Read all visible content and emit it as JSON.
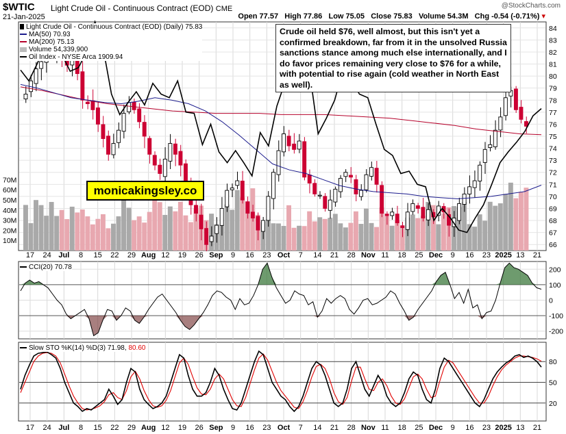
{
  "header": {
    "ticker": "$WTIC",
    "name": "Light Crude Oil - Continuous Contract (EOD)",
    "exchange": "CME",
    "date": "21-Jan-2025",
    "open": "Open 77.57",
    "high": "High 77.86",
    "low": "Low 75.05",
    "close": "Close 75.83",
    "volume": "Volume 54.3M",
    "chg": "Chg -0.54 (-0.71%)",
    "watermark": "@StockCharts.com"
  },
  "legend": {
    "main": "Light Crude Oil - Continuous Contract (EOD) (Daily) 75.83",
    "ma50": "MA(50) 70.93",
    "ma200": "MA(200) 75.13",
    "volume": "Volume 54,339,900",
    "oil_index": "Oil Index - NYSE Arca 1909.94",
    "cci": "CCI(20) 70.78",
    "sto_label": "Slow STO %K(14) %D(3) 71.98,",
    "sto_d": "80.60"
  },
  "annotation": "Crude oil held $76, well almost, but this isn't yet a confirmed breakdown, far from it in the unsolved Russia sanctions stance among much else internationally, and I do favor prices remaining very close to $76 for a while, with potential to rise again (cold weather in North East as well).",
  "site_label": "monicakingsley.co",
  "colors": {
    "up": "#000000",
    "down": "#cc0033",
    "ma50": "#1a1a8c",
    "ma200": "#b5002a",
    "oil_index": "#000000",
    "cci_fill": "#3d7a3d",
    "cci_neg_fill": "#7a3a3a",
    "sto_k": "#000000",
    "sto_d": "#e00000",
    "volume_up": "#a9a9a9",
    "volume_down": "#e8a8b0"
  },
  "chart_data": [
    {
      "type": "candlestick",
      "title": "Light Crude Oil - Continuous Contract (EOD) (Daily)",
      "ylim": [
        65.5,
        84.5
      ],
      "y_ticks": [
        66,
        67,
        68,
        69,
        70,
        71,
        72,
        73,
        74,
        75,
        76,
        77,
        78,
        79,
        80,
        81,
        82,
        83,
        84
      ],
      "x_ticks": [
        "17",
        "24",
        "Jul",
        "8",
        "15",
        "22",
        "29",
        "Aug",
        "12",
        "19",
        "26",
        "Sep",
        "9",
        "16",
        "23",
        "Oct",
        "7",
        "14",
        "21",
        "28",
        "Nov",
        "11",
        "18",
        "25",
        "Dec",
        "9",
        "16",
        "23",
        "2025",
        "13",
        "21"
      ],
      "bold_ticks": [
        "Jul",
        "Aug",
        "Sep",
        "Oct",
        "Nov",
        "Dec",
        "2025"
      ],
      "close_path": [
        78.5,
        79.6,
        80.6,
        81.2,
        81.8,
        82.0,
        82.4,
        81.6,
        80.9,
        81.3,
        80.2,
        78.0,
        77.7,
        77.2,
        76.0,
        74.8,
        73.5,
        74.4,
        75.5,
        76.9,
        77.8,
        77.2,
        76.2,
        75.0,
        73.5,
        72.6,
        71.9,
        73.1,
        74.4,
        73.5,
        72.6,
        71.0,
        69.3,
        68.6,
        67.3,
        66.0,
        66.7,
        67.6,
        69.0,
        70.5,
        70.7,
        71.3,
        69.7,
        68.6,
        68.2,
        67.2,
        68.0,
        70.0,
        72.0,
        73.8,
        75.2,
        74.2,
        73.9,
        74.6,
        71.6,
        71.1,
        70.2,
        70.1,
        69.0,
        69.7,
        70.6,
        71.5,
        72.0,
        71.6,
        70.2,
        70.5,
        71.8,
        72.4,
        71.0,
        68.6,
        68.4,
        68.7,
        67.8,
        67.4,
        68.7,
        69.4,
        69.0,
        68.2,
        68.9,
        68.3,
        69.2,
        68.7,
        67.6,
        68.2,
        69.4,
        70.2,
        70.8,
        71.3,
        72.6,
        73.9,
        74.3,
        75.5,
        76.6,
        78.2,
        78.8,
        77.2,
        76.4,
        75.83
      ],
      "series": [
        {
          "name": "MA(50)",
          "last": 70.93,
          "values": [
            79.3,
            79.0,
            78.6,
            78.2,
            78.0,
            77.8,
            77.7,
            77.9,
            78.2,
            78.0,
            77.7,
            77.1,
            76.2,
            75.1,
            73.9,
            72.7,
            72.2,
            71.9,
            71.4,
            70.9,
            70.6,
            70.4,
            70.3,
            70.2,
            70.0,
            69.9,
            69.8,
            69.9,
            70.0,
            70.2,
            70.4,
            70.93
          ]
        },
        {
          "name": "MA(200)",
          "last": 75.13,
          "values": [
            79.1,
            78.8,
            78.4,
            78.0,
            77.7,
            77.5,
            77.3,
            77.1,
            77.0,
            76.9,
            76.9,
            76.9,
            76.8,
            76.8,
            76.8,
            76.7,
            76.6,
            76.5,
            76.3,
            76.1,
            75.9,
            75.6,
            75.4,
            75.2,
            75.13
          ]
        },
        {
          "name": "Oil Index - NYSE Arca",
          "last": 1909.94,
          "values": [
            80.5,
            79.6,
            81.0,
            82.6,
            83.1,
            81.8,
            80.4,
            80.7,
            82.0,
            84.5,
            82.3,
            78.5,
            76.8,
            77.8,
            78.7,
            77.6,
            79.4,
            78.5,
            78.2,
            79.6,
            77.0,
            76.9,
            74.3,
            76.0,
            73.7,
            72.8,
            73.8,
            72.8,
            71.7,
            75.3,
            74.2,
            77.5,
            79.5,
            80.8,
            80.3,
            80.2,
            75.2,
            76.5,
            78.0,
            80.5,
            79.6,
            78.5,
            78.2,
            76.0,
            73.9,
            73.4,
            71.9,
            72.1,
            71.0,
            70.8,
            68.0,
            69.0,
            68.2,
            67.2,
            67.0,
            68.2,
            69.3,
            71.0,
            72.8,
            73.7,
            74.5,
            75.4,
            76.7,
            77.3
          ]
        }
      ]
    },
    {
      "type": "bar",
      "title": "Volume",
      "y_ticks": [
        "10M",
        "20M",
        "30M",
        "40M",
        "50M",
        "60M",
        "70M"
      ],
      "ylim": [
        0,
        75
      ],
      "last": 54339900
    },
    {
      "type": "line",
      "title": "CCI(20)",
      "ylim": [
        -250,
        250
      ],
      "y_ticks": [
        -200,
        -100,
        0,
        100,
        200
      ],
      "last": 70.78,
      "values": [
        60,
        110,
        130,
        110,
        120,
        100,
        80,
        40,
        0,
        -30,
        -90,
        -120,
        -100,
        -80,
        -60,
        -120,
        -230,
        -210,
        -130,
        -60,
        -70,
        -130,
        -100,
        -50,
        -70,
        -130,
        -150,
        -110,
        -60,
        -20,
        20,
        40,
        0,
        -40,
        -80,
        -130,
        -170,
        -190,
        -160,
        -120,
        -80,
        -30,
        30,
        60,
        50,
        20,
        0,
        -60,
        10,
        -30,
        -20,
        30,
        100,
        200,
        240,
        150,
        80,
        30,
        -20,
        0,
        60,
        40,
        30,
        -30,
        -10,
        -110,
        -70,
        10,
        -20,
        10,
        30,
        10,
        -60,
        -90,
        -50,
        0,
        10,
        -30,
        -20,
        0,
        20,
        60,
        40,
        -20,
        -70,
        -130,
        -110,
        -60,
        -20,
        20,
        60,
        120,
        160,
        180,
        100,
        10,
        50,
        -20,
        70,
        -50,
        -30,
        -120,
        -80,
        -70,
        0,
        110,
        210,
        240,
        210,
        200,
        180,
        160,
        110,
        80,
        70.78
      ]
    },
    {
      "type": "line",
      "title": "Slow STO %K(14) %D(3)",
      "ylim": [
        0,
        100
      ],
      "y_ticks": [
        20,
        50,
        80
      ],
      "series": [
        {
          "name": "%K(14)",
          "last": 71.98,
          "values": [
            40,
            60,
            75,
            88,
            92,
            93,
            94,
            90,
            85,
            70,
            50,
            35,
            20,
            15,
            8,
            12,
            10,
            15,
            20,
            25,
            40,
            30,
            18,
            25,
            50,
            70,
            65,
            40,
            25,
            18,
            12,
            15,
            20,
            30,
            50,
            70,
            90,
            85,
            60,
            40,
            30,
            30,
            35,
            50,
            70,
            60,
            40,
            25,
            12,
            10,
            20,
            40,
            60,
            80,
            95,
            90,
            70,
            50,
            40,
            30,
            25,
            15,
            8,
            15,
            30,
            50,
            70,
            80,
            75,
            60,
            40,
            20,
            15,
            20,
            40,
            70,
            80,
            60,
            40,
            30,
            45,
            60,
            50,
            30,
            20,
            15,
            20,
            35,
            55,
            65,
            60,
            40,
            25,
            20,
            40,
            70,
            85,
            80,
            70,
            60,
            50,
            40,
            30,
            20,
            15,
            25,
            40,
            55,
            65,
            72,
            78,
            82,
            88,
            90,
            86,
            88,
            85,
            80,
            71.98
          ]
        },
        {
          "name": "%D(3)",
          "last": 80.6,
          "values": [
            35,
            50,
            65,
            80,
            88,
            92,
            93,
            92,
            88,
            78,
            62,
            45,
            30,
            20,
            12,
            10,
            11,
            13,
            16,
            22,
            32,
            35,
            28,
            25,
            38,
            58,
            66,
            55,
            38,
            25,
            16,
            14,
            16,
            24,
            38,
            58,
            78,
            85,
            76,
            58,
            42,
            33,
            32,
            40,
            55,
            62,
            55,
            40,
            25,
            16,
            15,
            28,
            48,
            68,
            85,
            91,
            82,
            66,
            50,
            38,
            30,
            22,
            14,
            12,
            22,
            38,
            58,
            73,
            76,
            70,
            55,
            35,
            22,
            18,
            28,
            52,
            72,
            72,
            55,
            40,
            38,
            50,
            55,
            45,
            30,
            20,
            18,
            26,
            42,
            58,
            62,
            55,
            40,
            28,
            30,
            52,
            72,
            82,
            78,
            68,
            58,
            48,
            38,
            28,
            20,
            20,
            30,
            45,
            58,
            68,
            75,
            80,
            85,
            88,
            88,
            87,
            86,
            84,
            80.6
          ]
        }
      ]
    }
  ]
}
